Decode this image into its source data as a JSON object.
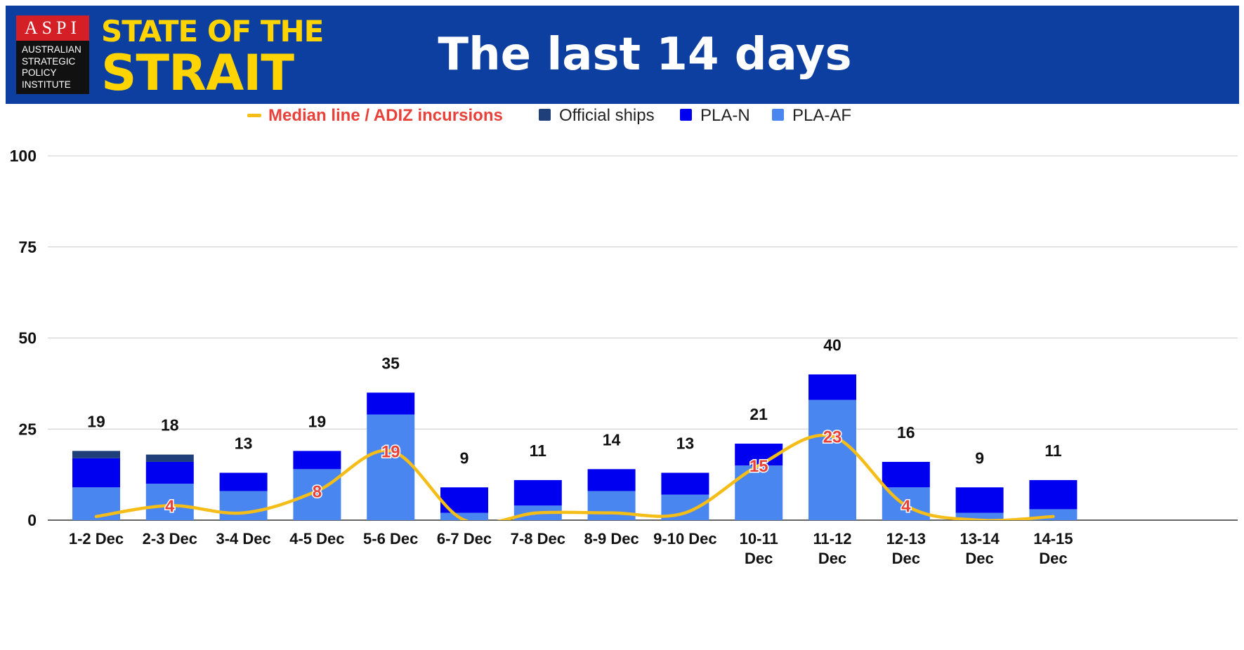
{
  "header": {
    "logo_acronym": "ASPI",
    "logo_org_name": "AUSTRALIAN\nSTRATEGIC\nPOLICY\nINSTITUTE",
    "brand_line1": "STATE OF THE",
    "brand_line2": "STRAIT",
    "title": "The last 14 days"
  },
  "colors": {
    "header_bg": "#0d3fa0",
    "brand_yellow": "#ffd400",
    "logo_red": "#d41f26",
    "official_ships": "#1f3f7a",
    "pla_n": "#0000f0",
    "pla_af": "#4a86f0",
    "median_line": "#f5bd17",
    "median_label": "#e8413a"
  },
  "chart_data": {
    "type": "bar",
    "stacked": true,
    "categories": [
      "1-2 Dec",
      "2-3 Dec",
      "3-4 Dec",
      "4-5 Dec",
      "5-6 Dec",
      "6-7 Dec",
      "7-8 Dec",
      "8-9 Dec",
      "9-10 Dec",
      "10-11 Dec",
      "11-12 Dec",
      "12-13 Dec",
      "13-14 Dec",
      "14-15 Dec"
    ],
    "series": [
      {
        "name": "PLA-AF",
        "values": [
          9,
          10,
          8,
          14,
          29,
          2,
          4,
          8,
          7,
          15,
          33,
          9,
          2,
          3
        ]
      },
      {
        "name": "PLA-N",
        "values": [
          8,
          6,
          5,
          5,
          6,
          7,
          7,
          6,
          6,
          6,
          7,
          7,
          7,
          8
        ]
      },
      {
        "name": "Official ships",
        "values": [
          2,
          2,
          0,
          0,
          0,
          0,
          0,
          0,
          0,
          0,
          0,
          0,
          0,
          0
        ]
      }
    ],
    "totals": [
      19,
      18,
      13,
      19,
      35,
      9,
      11,
      14,
      13,
      21,
      40,
      16,
      9,
      11
    ],
    "median_line": {
      "name": "Median line / ADIZ incursions",
      "values": [
        1,
        4,
        2,
        8,
        19,
        0,
        2,
        2,
        2,
        15,
        23,
        4,
        0,
        1
      ],
      "labeled": [
        false,
        true,
        false,
        true,
        true,
        false,
        false,
        false,
        false,
        true,
        true,
        true,
        false,
        false
      ]
    },
    "ylim": [
      0,
      100
    ],
    "yticks": [
      0,
      25,
      50,
      75,
      100
    ],
    "grid": true,
    "legend_position": "top"
  }
}
